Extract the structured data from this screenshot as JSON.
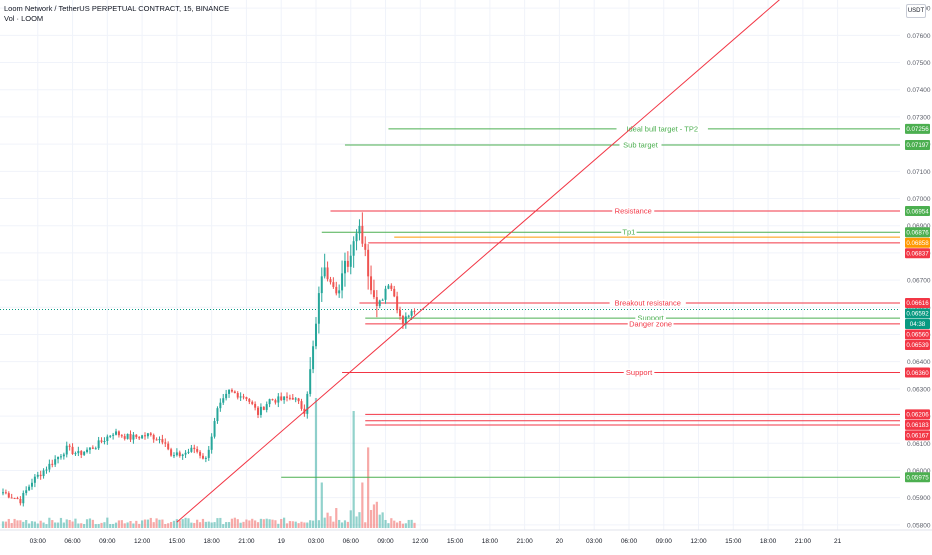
{
  "header": {
    "title": "Loom Network / TetherUS PERPETUAL CONTRACT, 15, BINANCE",
    "volume_label": "Vol · LOOM"
  },
  "currency_button": "USDT",
  "colors": {
    "up": "#26a69a",
    "down": "#ef5350",
    "green_line": "#4caf50",
    "red_line": "#f23645",
    "orange": "#ff9800",
    "current_price": "#089981",
    "grid": "#f0f3fa",
    "axis_text": "#5d606b",
    "trendline": "#f23645"
  },
  "chart_data": {
    "type": "candlestick",
    "timeframe": "15",
    "y_axis": {
      "ylim": [
        0.0577,
        0.0773
      ],
      "ticks": [
        "0.07700",
        "0.07600",
        "0.07500",
        "0.07400",
        "0.07300",
        "0.07200",
        "0.07100",
        "0.07000",
        "0.06900",
        "0.06800",
        "0.06700",
        "0.06600",
        "0.06500",
        "0.06400",
        "0.06300",
        "0.06200",
        "0.06100",
        "0.06000",
        "0.05900",
        "0.05800"
      ]
    },
    "x_axis": {
      "ticks": [
        {
          "label": "03:00",
          "t": 12
        },
        {
          "label": "06:00",
          "t": 24
        },
        {
          "label": "09:00",
          "t": 36
        },
        {
          "label": "12:00",
          "t": 48
        },
        {
          "label": "15:00",
          "t": 60
        },
        {
          "label": "18:00",
          "t": 72
        },
        {
          "label": "21:00",
          "t": 84
        },
        {
          "label": "19",
          "t": 96
        },
        {
          "label": "03:00",
          "t": 108
        },
        {
          "label": "06:00",
          "t": 120
        },
        {
          "label": "09:00",
          "t": 132
        },
        {
          "label": "12:00",
          "t": 144
        },
        {
          "label": "15:00",
          "t": 156
        },
        {
          "label": "18:00",
          "t": 168
        },
        {
          "label": "21:00",
          "t": 180
        },
        {
          "label": "20",
          "t": 192
        },
        {
          "label": "03:00",
          "t": 204
        },
        {
          "label": "06:00",
          "t": 216
        },
        {
          "label": "09:00",
          "t": 228
        },
        {
          "label": "12:00",
          "t": 240
        },
        {
          "label": "15:00",
          "t": 252
        },
        {
          "label": "18:00",
          "t": 264
        },
        {
          "label": "21:00",
          "t": 276
        },
        {
          "label": "21",
          "t": 288
        }
      ]
    },
    "price_waypoints": [
      [
        0,
        0.0592
      ],
      [
        6,
        0.0589
      ],
      [
        10,
        0.0596
      ],
      [
        16,
        0.0602
      ],
      [
        22,
        0.0608
      ],
      [
        26,
        0.0606
      ],
      [
        32,
        0.0609
      ],
      [
        38,
        0.0614
      ],
      [
        44,
        0.0612
      ],
      [
        50,
        0.0613
      ],
      [
        56,
        0.0611
      ],
      [
        58,
        0.0605
      ],
      [
        62,
        0.0606
      ],
      [
        66,
        0.0608
      ],
      [
        70,
        0.0604
      ],
      [
        74,
        0.0622
      ],
      [
        78,
        0.0629
      ],
      [
        84,
        0.0627
      ],
      [
        88,
        0.0621
      ],
      [
        92,
        0.0626
      ],
      [
        96,
        0.0626
      ],
      [
        100,
        0.0627
      ],
      [
        104,
        0.0622
      ],
      [
        106,
        0.0636
      ],
      [
        108,
        0.0653
      ],
      [
        110,
        0.0673
      ],
      [
        113,
        0.0672
      ],
      [
        116,
        0.0666
      ],
      [
        118,
        0.0675
      ],
      [
        120,
        0.0679
      ],
      [
        121,
        0.0687
      ],
      [
        123,
        0.069
      ],
      [
        125,
        0.0682
      ],
      [
        126,
        0.0673
      ],
      [
        128,
        0.0662
      ],
      [
        131,
        0.0664
      ],
      [
        133,
        0.0669
      ],
      [
        135,
        0.0665
      ],
      [
        136,
        0.0659
      ],
      [
        138,
        0.0655
      ],
      [
        140,
        0.0657
      ],
      [
        142,
        0.0659
      ]
    ],
    "volume_spikes": [
      {
        "t": 108,
        "v": 1.0
      },
      {
        "t": 121,
        "v": 0.9
      },
      {
        "t": 126,
        "v": 0.62
      },
      {
        "t": 110,
        "v": 0.35
      },
      {
        "t": 124,
        "v": 0.35
      }
    ],
    "trendline": {
      "from": {
        "t": 60,
        "price": 0.0581
      },
      "to": {
        "t": 270,
        "price": 0.0775
      }
    },
    "current_price": 0.06592,
    "current_countdown": "04:38",
    "levels": [
      {
        "price": 0.07256,
        "label": "Ideal bull target - TP2",
        "color": "#4caf50",
        "t_start": 133
      },
      {
        "price": 0.07197,
        "label": "Sub target",
        "color": "#4caf50",
        "t_start": 118
      },
      {
        "price": 0.06954,
        "label": "Resistance",
        "color": "#f23645",
        "t_start": 113
      },
      {
        "price": 0.06876,
        "label": "Tp1",
        "color": "#4caf50",
        "t_start": 110
      },
      {
        "price": 0.06858,
        "label": "",
        "color": "#ff9800",
        "t_start": 135
      },
      {
        "price": 0.06837,
        "label": "",
        "color": "#f23645",
        "t_start": 126
      },
      {
        "price": 0.06616,
        "label": "Breakout resistance",
        "color": "#f23645",
        "t_start": 123
      },
      {
        "price": 0.0656,
        "label": "Support",
        "color": "#4caf50",
        "t_start": 125
      },
      {
        "price": 0.06539,
        "label": "Danger zone",
        "color": "#f23645",
        "t_start": 125
      },
      {
        "price": 0.0636,
        "label": "Support",
        "color": "#f23645",
        "t_start": 117
      },
      {
        "price": 0.06206,
        "label": "",
        "color": "#f23645",
        "t_start": 125
      },
      {
        "price": 0.06183,
        "label": "",
        "color": "#f23645",
        "t_start": 125
      },
      {
        "price": 0.06167,
        "label": "",
        "color": "#f23645",
        "t_start": 125
      },
      {
        "price": 0.05975,
        "label": "",
        "color": "#4caf50",
        "t_start": 96
      }
    ],
    "price_labels": [
      {
        "text": "0.07256",
        "color": "#4caf50"
      },
      {
        "text": "0.07197",
        "color": "#4caf50"
      },
      {
        "text": "0.06954",
        "color": "#4caf50"
      },
      {
        "text": "0.06876",
        "color": "#4caf50"
      },
      {
        "text": "0.06858",
        "color": "#ff9800"
      },
      {
        "text": "0.06837",
        "color": "#f23645"
      },
      {
        "text": "0.06616",
        "color": "#f23645"
      },
      {
        "text": "0.06592",
        "color": "#089981"
      },
      {
        "text": "04:38",
        "color": "#089981"
      },
      {
        "text": "0.06560",
        "color": "#f23645"
      },
      {
        "text": "0.06539",
        "color": "#f23645"
      },
      {
        "text": "0.06360",
        "color": "#f23645"
      },
      {
        "text": "0.06206",
        "color": "#f23645"
      },
      {
        "text": "0.06183",
        "color": "#f23645"
      },
      {
        "text": "0.06167",
        "color": "#f23645"
      },
      {
        "text": "0.05975",
        "color": "#4caf50"
      }
    ]
  }
}
